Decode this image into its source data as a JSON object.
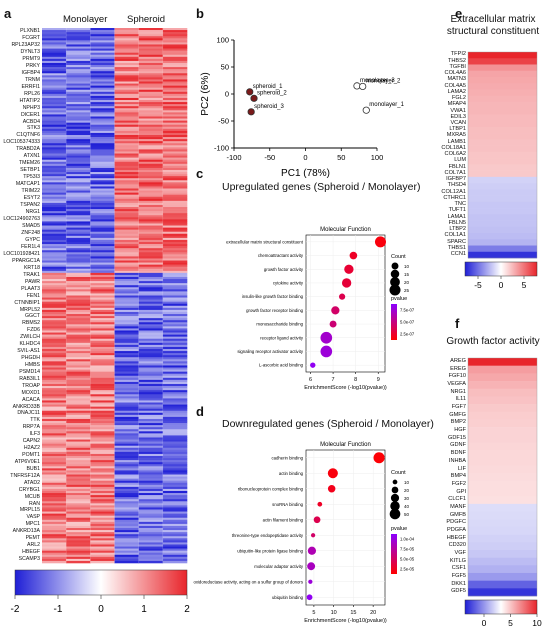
{
  "panel_a": {
    "letter": "a",
    "col_headers": [
      "Monolayer",
      "Spheroid"
    ],
    "genes_top": [
      "PLXNB1",
      "FCGRT",
      "RPL23AP32",
      "DYNLT3",
      "PRMT9",
      "PRKY",
      "IGFBP4",
      "TRNM",
      "ERRFI1",
      "RPL26",
      "HTATIP2",
      "NPHP3",
      "DICER1",
      "ACBD4",
      "STK3",
      "C1QTNF6",
      "LOC105374333",
      "TRABD2A",
      "ATXN1",
      "TMEM26",
      "SETBP1",
      "TP53I3",
      "MATCAP1",
      "TRIM22",
      "ESYT2",
      "TSPAN2",
      "NRG1",
      "LOC124902763",
      "SMAD5",
      "ZNF248",
      "GYPC",
      "FER1L4",
      "LOC101928421",
      "PPARGC1A",
      "KRT18"
    ],
    "genes_bottom": [
      "TRAK1",
      "PAWR",
      "PLAAT3",
      "FEN1",
      "CTNNBIP1",
      "MRPL52",
      "GGCT",
      "RBMS2",
      "FZD6",
      "ZWILCH",
      "KLHDC4",
      "SVIL-AS1",
      "PHGDH",
      "HMBS",
      "PSMD14",
      "RAB3IL1",
      "TROAP",
      "MOXD1",
      "ACACA",
      "ANKRD33B",
      "DNAJC11",
      "TTK",
      "RRP7A",
      "ILF3",
      "CAPN2",
      "H2AZ2",
      "POMT1",
      "ATP6V0E1",
      "BUB1",
      "TNFRSF12A",
      "ATAD2",
      "CRYBG1",
      "MCUB",
      "RAN",
      "MRPL15",
      "VASP",
      "MPC1",
      "ANKRD13A",
      "PEMT",
      "ARL2",
      "HBEGF",
      "SCAMP3"
    ],
    "colorbar_ticks": [
      "-2",
      "-1",
      "0",
      "1",
      "2"
    ]
  },
  "panel_b": {
    "letter": "b",
    "chart_data": {
      "type": "scatter",
      "xlabel": "PC1 (78%)",
      "ylabel": "PC2 (6%)",
      "xlim": [
        -100,
        100
      ],
      "ylim": [
        -100,
        100
      ],
      "xticks": [
        "-100",
        "-50",
        "0",
        "50",
        "100"
      ],
      "yticks": [
        "-100",
        "-50",
        "0",
        "50",
        "100"
      ],
      "points": [
        {
          "label": "spheroid_1",
          "x": -78,
          "y": 4,
          "group": "spheroid"
        },
        {
          "label": "spheroid_2",
          "x": -72,
          "y": -8,
          "group": "spheroid"
        },
        {
          "label": "spheroid_3",
          "x": -76,
          "y": -33,
          "group": "spheroid"
        },
        {
          "label": "monolayer_3",
          "x": 72,
          "y": 15,
          "group": "monolayer"
        },
        {
          "label": "monolayer_2",
          "x": 80,
          "y": 14,
          "group": "monolayer"
        },
        {
          "label": "monolayer_1",
          "x": 85,
          "y": -30,
          "group": "monolayer"
        }
      ]
    }
  },
  "panel_c": {
    "letter": "c",
    "title": "Upregulated genes (Spheroid / Monolayer)",
    "subtitle": "Molecular Function",
    "xlabel": "EnrichmentScore (-log10(pvalue))",
    "count_title": "Count",
    "count_ticks": [
      "10",
      "15",
      "20",
      "25"
    ],
    "pvalue_title": "pvalue",
    "pvalue_ticks": [
      "7.5e-07",
      "5.0e-07",
      "2.5e-07"
    ],
    "xticks": [
      "6",
      "7",
      "8",
      "9"
    ],
    "chart_data": {
      "type": "scatter",
      "categories": [
        "extracellular matrix structural constituent",
        "chemoattractant activity",
        "growth factor activity",
        "cytokine activity",
        "insulin-like growth factor binding",
        "growth factor receptor binding",
        "monosaccharide binding",
        "receptor ligand activity",
        "signaling receptor activator activity",
        "L-ascorbic acid binding"
      ],
      "x": [
        9.1,
        7.9,
        7.7,
        7.6,
        7.4,
        7.1,
        7.0,
        6.7,
        6.7,
        6.1
      ],
      "count": [
        25,
        12,
        18,
        18,
        8,
        14,
        10,
        28,
        28,
        6
      ],
      "pvalue_rank": [
        0.05,
        0.15,
        0.2,
        0.22,
        0.3,
        0.4,
        0.45,
        0.8,
        0.85,
        0.95
      ]
    }
  },
  "panel_d": {
    "letter": "d",
    "title": "Downregulated genes (Spheroid / Monolayer)",
    "subtitle": "Molecular Function",
    "xlabel": "EnrichmentScore (-log10(pvalue))",
    "count_title": "Count",
    "count_ticks": [
      "10",
      "20",
      "30",
      "40",
      "50"
    ],
    "pvalue_title": "pvalue",
    "pvalue_ticks": [
      "1.0e-04",
      "7.5e-05",
      "5.0e-05",
      "2.5e-05"
    ],
    "xticks": [
      "5",
      "10",
      "15",
      "20"
    ],
    "chart_data": {
      "type": "scatter",
      "categories": [
        "cadherin binding",
        "actin binding",
        "ribonucleoprotein complex binding",
        "snoRNA binding",
        "actin filament binding",
        "threonine-type endopeptidase activity",
        "ubiquitin-like protein ligase binding",
        "molecular adaptor activity",
        "oxidoreductase activity, acting on a sulfur group of donors",
        "ubiquitin binding"
      ],
      "x": [
        21.5,
        9.8,
        9.5,
        6.5,
        5.8,
        4.8,
        4.5,
        4.3,
        4.1,
        3.9
      ],
      "count": [
        55,
        45,
        25,
        10,
        20,
        8,
        30,
        28,
        8,
        15
      ],
      "pvalue_rank": [
        0.02,
        0.05,
        0.1,
        0.15,
        0.3,
        0.4,
        0.7,
        0.75,
        0.85,
        0.95
      ]
    }
  },
  "panel_e": {
    "letter": "e",
    "title_line1": "Extracellular matrix",
    "title_line2": "structural constituent",
    "genes": [
      "TFPI2",
      "THBS2",
      "TGFBI",
      "COL4A6",
      "MATN3",
      "COL4A5",
      "LAMA2",
      "FGL2",
      "MFAP4",
      "VWA1",
      "EDIL3",
      "VCAN",
      "LTBP1",
      "MXRA5",
      "LAMB1",
      "COL18A1",
      "COL6A2",
      "LUM",
      "FBLN1",
      "COL7A1",
      "IGFBP7",
      "THSD4",
      "COL12A1",
      "CTHRC1",
      "TNC",
      "TUFT1",
      "LAMA1",
      "FBLN5",
      "LTBP2",
      "COL1A1",
      "SPARC",
      "THBS1",
      "CCN1"
    ],
    "values": [
      6.5,
      5.2,
      3.0,
      2.5,
      2.4,
      2.3,
      2.2,
      2.1,
      2.0,
      2.0,
      1.9,
      1.9,
      1.8,
      1.8,
      1.7,
      1.7,
      1.6,
      1.6,
      1.5,
      1.5,
      -1.2,
      -1.3,
      -1.4,
      -1.4,
      -1.5,
      -1.5,
      -1.6,
      -1.6,
      -1.7,
      -1.8,
      -2.0,
      -3.5,
      -5.5
    ],
    "colorbar_ticks": [
      "-5",
      "0",
      "5"
    ]
  },
  "panel_f": {
    "letter": "f",
    "title": "Growth factor activity",
    "genes": [
      "AREG",
      "EREG",
      "FGF10",
      "VEGFA",
      "NRG1",
      "IL11",
      "FGF7",
      "GMFG",
      "BMP2",
      "HGF",
      "GDF15",
      "GDNF",
      "BDNF",
      "INHBA",
      "LIF",
      "BMP4",
      "FGF2",
      "GPI",
      "CLCF1",
      "MANF",
      "GMFB",
      "PDGFC",
      "PDGFA",
      "HBEGF",
      "CD320",
      "VGF",
      "KITLG",
      "CSF1",
      "FGF5",
      "DKK1",
      "GDF5"
    ],
    "values": [
      10,
      4.5,
      4.0,
      3.5,
      3.0,
      2.8,
      2.5,
      2.3,
      2.2,
      2.0,
      2.0,
      1.9,
      1.8,
      1.8,
      1.7,
      1.6,
      1.5,
      1.5,
      1.4,
      -1.5,
      -1.6,
      -1.7,
      -1.8,
      -2.0,
      -2.2,
      -2.5,
      -3.0,
      -3.5,
      -4.5,
      -7.0,
      -9.0
    ],
    "colorbar_ticks": [
      "0",
      "5",
      "10"
    ]
  },
  "colors": {
    "red": "#e8312f",
    "white": "#ffffff",
    "blue": "#2b35d6",
    "dot_red": "#d73027",
    "dot_purple": "#8b00ff"
  }
}
